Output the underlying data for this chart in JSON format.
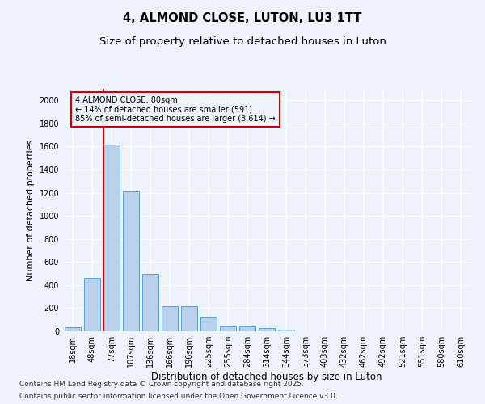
{
  "title": "4, ALMOND CLOSE, LUTON, LU3 1TT",
  "subtitle": "Size of property relative to detached houses in Luton",
  "xlabel": "Distribution of detached houses by size in Luton",
  "ylabel": "Number of detached properties",
  "categories": [
    "18sqm",
    "48sqm",
    "77sqm",
    "107sqm",
    "136sqm",
    "166sqm",
    "196sqm",
    "225sqm",
    "255sqm",
    "284sqm",
    "314sqm",
    "344sqm",
    "373sqm",
    "403sqm",
    "432sqm",
    "462sqm",
    "492sqm",
    "521sqm",
    "551sqm",
    "580sqm",
    "610sqm"
  ],
  "values": [
    35,
    460,
    1620,
    1210,
    500,
    220,
    220,
    125,
    45,
    40,
    25,
    15,
    0,
    0,
    0,
    0,
    0,
    0,
    0,
    0,
    0
  ],
  "bar_color": "#b8d0ea",
  "bar_edge_color": "#5a9fd4",
  "vline_color": "#cc0000",
  "annotation_box_text": "4 ALMOND CLOSE: 80sqm\n← 14% of detached houses are smaller (591)\n85% of semi-detached houses are larger (3,614) →",
  "annotation_box_color": "#cc0000",
  "ylim": [
    0,
    2100
  ],
  "yticks": [
    0,
    200,
    400,
    600,
    800,
    1000,
    1200,
    1400,
    1600,
    1800,
    2000
  ],
  "background_color": "#eef2fb",
  "grid_color": "#ffffff",
  "footer_line1": "Contains HM Land Registry data © Crown copyright and database right 2025.",
  "footer_line2": "Contains public sector information licensed under the Open Government Licence v3.0.",
  "title_fontsize": 10.5,
  "subtitle_fontsize": 9.5,
  "xlabel_fontsize": 8.5,
  "ylabel_fontsize": 8,
  "tick_fontsize": 7,
  "footer_fontsize": 6.5,
  "vline_bar_index": 2
}
